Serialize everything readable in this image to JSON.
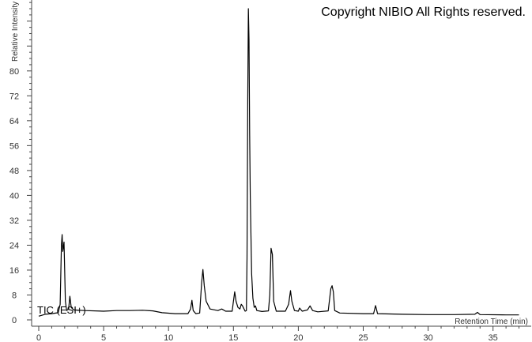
{
  "copyright": "Copyright NIBIO All Rights reserved.",
  "chart_data": {
    "type": "line",
    "title": "",
    "xlabel": "Retention Time (min)",
    "ylabel": "Relative Intensity",
    "xlim": [
      -0.5,
      37.5
    ],
    "ylim": [
      -2,
      103
    ],
    "xticks": [
      0,
      5,
      10,
      15,
      20,
      25,
      30,
      35
    ],
    "yticks": [
      0,
      8,
      16,
      24,
      32,
      40,
      48,
      56,
      64,
      72,
      80
    ],
    "grid": false,
    "annotations": [
      "TIC (ESI+)"
    ],
    "series": [
      {
        "name": "TIC (ESI+)",
        "points": [
          [
            0,
            1.2
          ],
          [
            0.5,
            1.8
          ],
          [
            1.0,
            2.0
          ],
          [
            1.5,
            2.3
          ],
          [
            1.65,
            5
          ],
          [
            1.75,
            24
          ],
          [
            1.8,
            27.4
          ],
          [
            1.85,
            22
          ],
          [
            1.95,
            25
          ],
          [
            2.05,
            6
          ],
          [
            2.15,
            3
          ],
          [
            2.3,
            3.5
          ],
          [
            2.4,
            7.6
          ],
          [
            2.5,
            4
          ],
          [
            2.7,
            3.2
          ],
          [
            3.5,
            3.0
          ],
          [
            5,
            2.8
          ],
          [
            6,
            3.0
          ],
          [
            7,
            3.0
          ],
          [
            8,
            3.1
          ],
          [
            8.8,
            2.9
          ],
          [
            9.5,
            2.3
          ],
          [
            10.5,
            2.0
          ],
          [
            11.5,
            2.0
          ],
          [
            11.7,
            3.5
          ],
          [
            11.8,
            6.3
          ],
          [
            11.9,
            3
          ],
          [
            12.1,
            2
          ],
          [
            12.4,
            2.2
          ],
          [
            12.55,
            12
          ],
          [
            12.65,
            16.2
          ],
          [
            12.75,
            11
          ],
          [
            12.9,
            6
          ],
          [
            13.2,
            3.5
          ],
          [
            13.8,
            3
          ],
          [
            14.1,
            3.5
          ],
          [
            14.4,
            2.8
          ],
          [
            14.9,
            2.8
          ],
          [
            15.0,
            6
          ],
          [
            15.1,
            9
          ],
          [
            15.2,
            6
          ],
          [
            15.35,
            4
          ],
          [
            15.5,
            3.5
          ],
          [
            15.6,
            5
          ],
          [
            15.7,
            4.5
          ],
          [
            15.9,
            2.8
          ],
          [
            16.0,
            3
          ],
          [
            16.05,
            20
          ],
          [
            16.1,
            70
          ],
          [
            16.15,
            100
          ],
          [
            16.2,
            90
          ],
          [
            16.25,
            60
          ],
          [
            16.3,
            40
          ],
          [
            16.4,
            15
          ],
          [
            16.5,
            7
          ],
          [
            16.6,
            4
          ],
          [
            16.7,
            4.5
          ],
          [
            16.8,
            3
          ],
          [
            17.2,
            2.7
          ],
          [
            17.7,
            2.9
          ],
          [
            17.8,
            8
          ],
          [
            17.9,
            23
          ],
          [
            18.0,
            21
          ],
          [
            18.1,
            6
          ],
          [
            18.3,
            2.8
          ],
          [
            19.0,
            2.8
          ],
          [
            19.25,
            5
          ],
          [
            19.4,
            9.4
          ],
          [
            19.5,
            6
          ],
          [
            19.7,
            3
          ],
          [
            20.0,
            2.8
          ],
          [
            20.1,
            3.8
          ],
          [
            20.3,
            2.8
          ],
          [
            20.7,
            3.2
          ],
          [
            20.9,
            4.5
          ],
          [
            21.1,
            3
          ],
          [
            21.5,
            2.6
          ],
          [
            22.3,
            2.9
          ],
          [
            22.5,
            10
          ],
          [
            22.6,
            11
          ],
          [
            22.7,
            9
          ],
          [
            22.8,
            3
          ],
          [
            23.2,
            2.2
          ],
          [
            25,
            2.0
          ],
          [
            25.8,
            2.0
          ],
          [
            25.95,
            4.6
          ],
          [
            26.1,
            2.0
          ],
          [
            28,
            1.8
          ],
          [
            30,
            1.7
          ],
          [
            32,
            1.7
          ],
          [
            33.6,
            1.8
          ],
          [
            33.8,
            2.4
          ],
          [
            34.0,
            1.7
          ],
          [
            36,
            1.6
          ],
          [
            37,
            1.6
          ]
        ]
      }
    ],
    "line_color": "#000000"
  }
}
